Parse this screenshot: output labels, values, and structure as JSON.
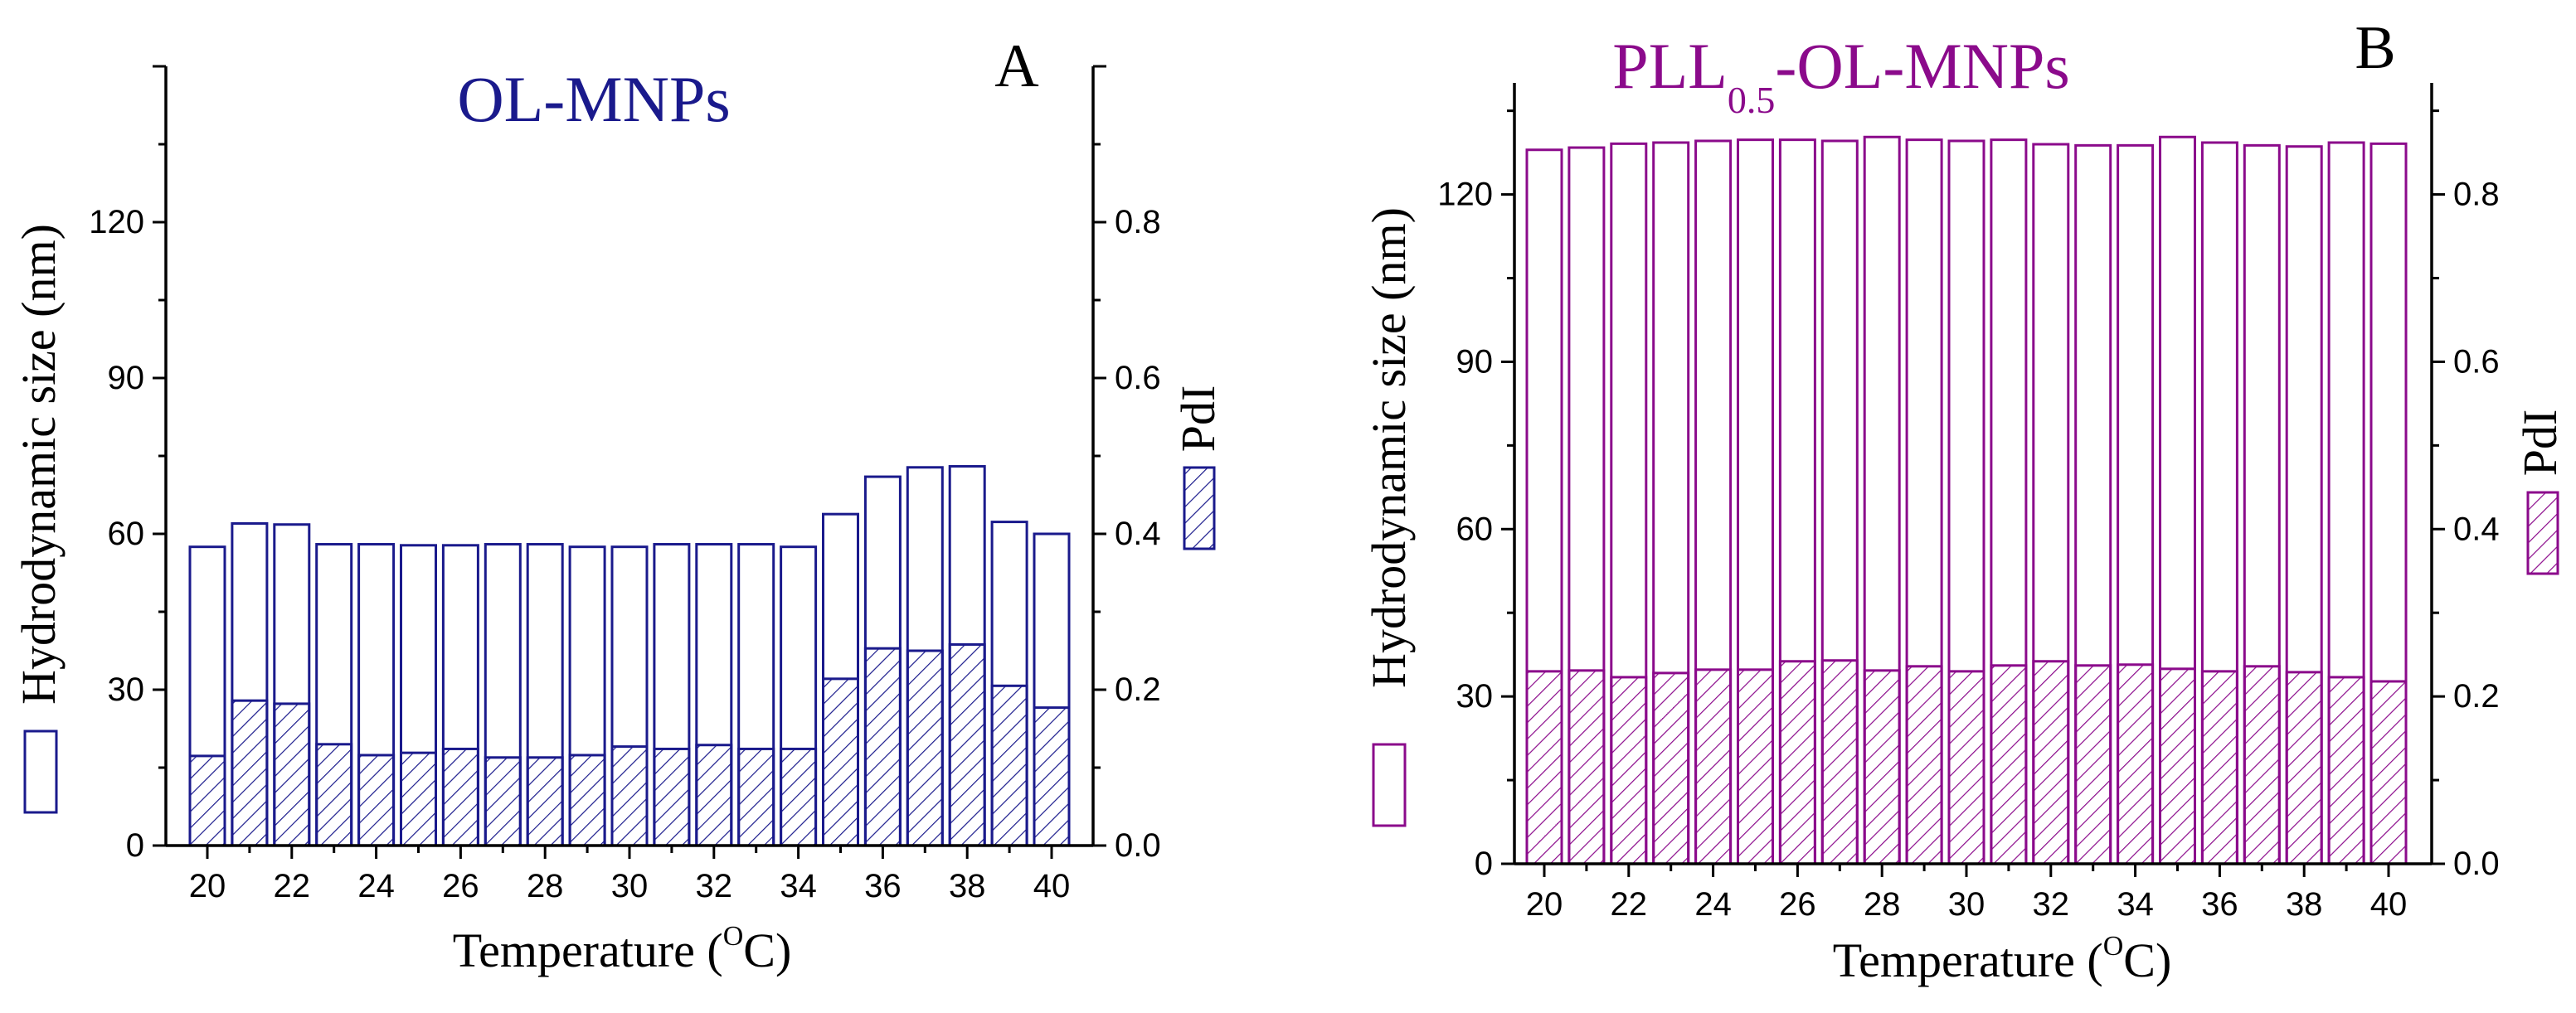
{
  "chart_data": [
    {
      "id": "A",
      "type": "bar",
      "panel_label": "A",
      "title": "OL-MNPs",
      "title_sub": "",
      "title_suffix": "",
      "color": "#1a1a8c",
      "xlabel": "Temperature (",
      "xlabel_sup": "O",
      "xlabel_end": "C)",
      "ylabel": "Hydrodynamic size (nm)",
      "y2label": "PdI",
      "categories": [
        20,
        21,
        22,
        23,
        24,
        25,
        26,
        27,
        28,
        29,
        30,
        31,
        32,
        33,
        34,
        35,
        36,
        37,
        38,
        39,
        40
      ],
      "x_tick_labels": [
        "20",
        "22",
        "24",
        "26",
        "28",
        "30",
        "32",
        "34",
        "36",
        "38",
        "40"
      ],
      "ylim": [
        0,
        150
      ],
      "y_ticks": [
        "0",
        "30",
        "60",
        "90",
        "120"
      ],
      "y2lim": [
        0,
        1.0
      ],
      "y2_ticks": [
        "0.0",
        "0.2",
        "0.4",
        "0.6",
        "0.8"
      ],
      "series": [
        {
          "name": "Hydrodynamic size",
          "axis": "left",
          "fill": "open",
          "values": [
            57.5,
            62,
            61.8,
            58,
            58,
            57.8,
            57.8,
            58,
            58,
            57.5,
            57.5,
            58,
            58,
            58,
            57.5,
            63.8,
            71,
            72.8,
            73,
            62.3,
            60
          ]
        },
        {
          "name": "PdI",
          "axis": "right",
          "fill": "hatched",
          "values": [
            0.115,
            0.186,
            0.182,
            0.13,
            0.116,
            0.119,
            0.124,
            0.113,
            0.113,
            0.116,
            0.127,
            0.124,
            0.129,
            0.124,
            0.124,
            0.214,
            0.253,
            0.25,
            0.258,
            0.205,
            0.177
          ]
        }
      ]
    },
    {
      "id": "B",
      "type": "bar",
      "panel_label": "B",
      "title": "PLL",
      "title_sub": "0.5",
      "title_suffix": "-OL-MNPs",
      "color": "#8b0a8b",
      "xlabel": "Temperature (",
      "xlabel_sup": "O",
      "xlabel_end": "C)",
      "ylabel": "Hydrodynamic size (nm)",
      "y2label": "PdI",
      "categories": [
        20,
        21,
        22,
        23,
        24,
        25,
        26,
        27,
        28,
        29,
        30,
        31,
        32,
        33,
        34,
        35,
        36,
        37,
        38,
        39,
        40
      ],
      "x_tick_labels": [
        "20",
        "22",
        "24",
        "26",
        "28",
        "30",
        "32",
        "34",
        "36",
        "38",
        "40"
      ],
      "ylim": [
        0,
        140
      ],
      "y_ticks": [
        "0",
        "30",
        "60",
        "90",
        "120"
      ],
      "y2lim": [
        0,
        0.9333
      ],
      "y2_ticks": [
        "0.0",
        "0.2",
        "0.4",
        "0.6",
        "0.8"
      ],
      "series": [
        {
          "name": "Hydrodynamic size",
          "axis": "left",
          "fill": "open",
          "values": [
            128,
            128.4,
            129.1,
            129.3,
            129.6,
            129.8,
            129.8,
            129.6,
            130.3,
            129.8,
            129.6,
            129.8,
            129,
            128.8,
            128.8,
            130.3,
            129.3,
            128.8,
            128.6,
            129.3,
            129.1
          ]
        },
        {
          "name": "PdI",
          "axis": "right",
          "fill": "hatched",
          "values": [
            0.23,
            0.231,
            0.223,
            0.228,
            0.232,
            0.232,
            0.242,
            0.243,
            0.231,
            0.236,
            0.23,
            0.237,
            0.242,
            0.237,
            0.238,
            0.233,
            0.23,
            0.236,
            0.229,
            0.223,
            0.218
          ]
        }
      ]
    }
  ]
}
